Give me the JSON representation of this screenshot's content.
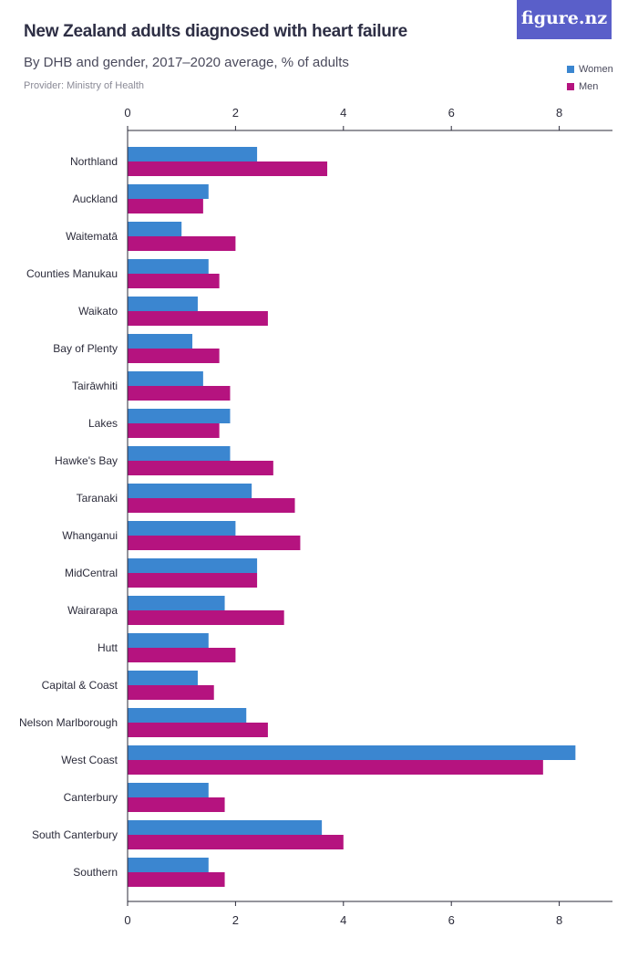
{
  "header": {
    "title": "New Zealand adults diagnosed with heart failure",
    "subtitle": "By DHB and gender, 2017–2020 average, % of adults",
    "provider": "Provider: Ministry of Health",
    "logo": "figure.nz"
  },
  "chart_data": {
    "type": "bar",
    "orientation": "horizontal",
    "categories": [
      "Northland",
      "Auckland",
      "Waitematā",
      "Counties Manukau",
      "Waikato",
      "Bay of Plenty",
      "Tairāwhiti",
      "Lakes",
      "Hawke's Bay",
      "Taranaki",
      "Whanganui",
      "MidCentral",
      "Wairarapa",
      "Hutt",
      "Capital & Coast",
      "Nelson Marlborough",
      "West Coast",
      "Canterbury",
      "South Canterbury",
      "Southern"
    ],
    "series": [
      {
        "name": "Women",
        "color": "#3b86d0",
        "values": [
          2.4,
          1.5,
          1.0,
          1.5,
          1.3,
          1.2,
          1.4,
          1.9,
          1.9,
          2.3,
          2.0,
          2.4,
          1.8,
          1.5,
          1.3,
          2.2,
          8.3,
          1.5,
          3.6,
          1.5
        ]
      },
      {
        "name": "Men",
        "color": "#b5137f",
        "values": [
          3.7,
          1.4,
          2.0,
          1.7,
          2.6,
          1.7,
          1.9,
          1.7,
          2.7,
          3.1,
          3.2,
          2.4,
          2.9,
          2.0,
          1.6,
          2.6,
          7.7,
          1.8,
          4.0,
          1.8
        ]
      }
    ],
    "xlim": [
      0,
      9
    ],
    "ticks": [
      0,
      2,
      4,
      6,
      8
    ],
    "tick_labels": [
      "0",
      "2",
      "4",
      "6",
      "8"
    ],
    "xlabel": "",
    "ylabel": "",
    "grid": false,
    "legend": "top-right"
  }
}
